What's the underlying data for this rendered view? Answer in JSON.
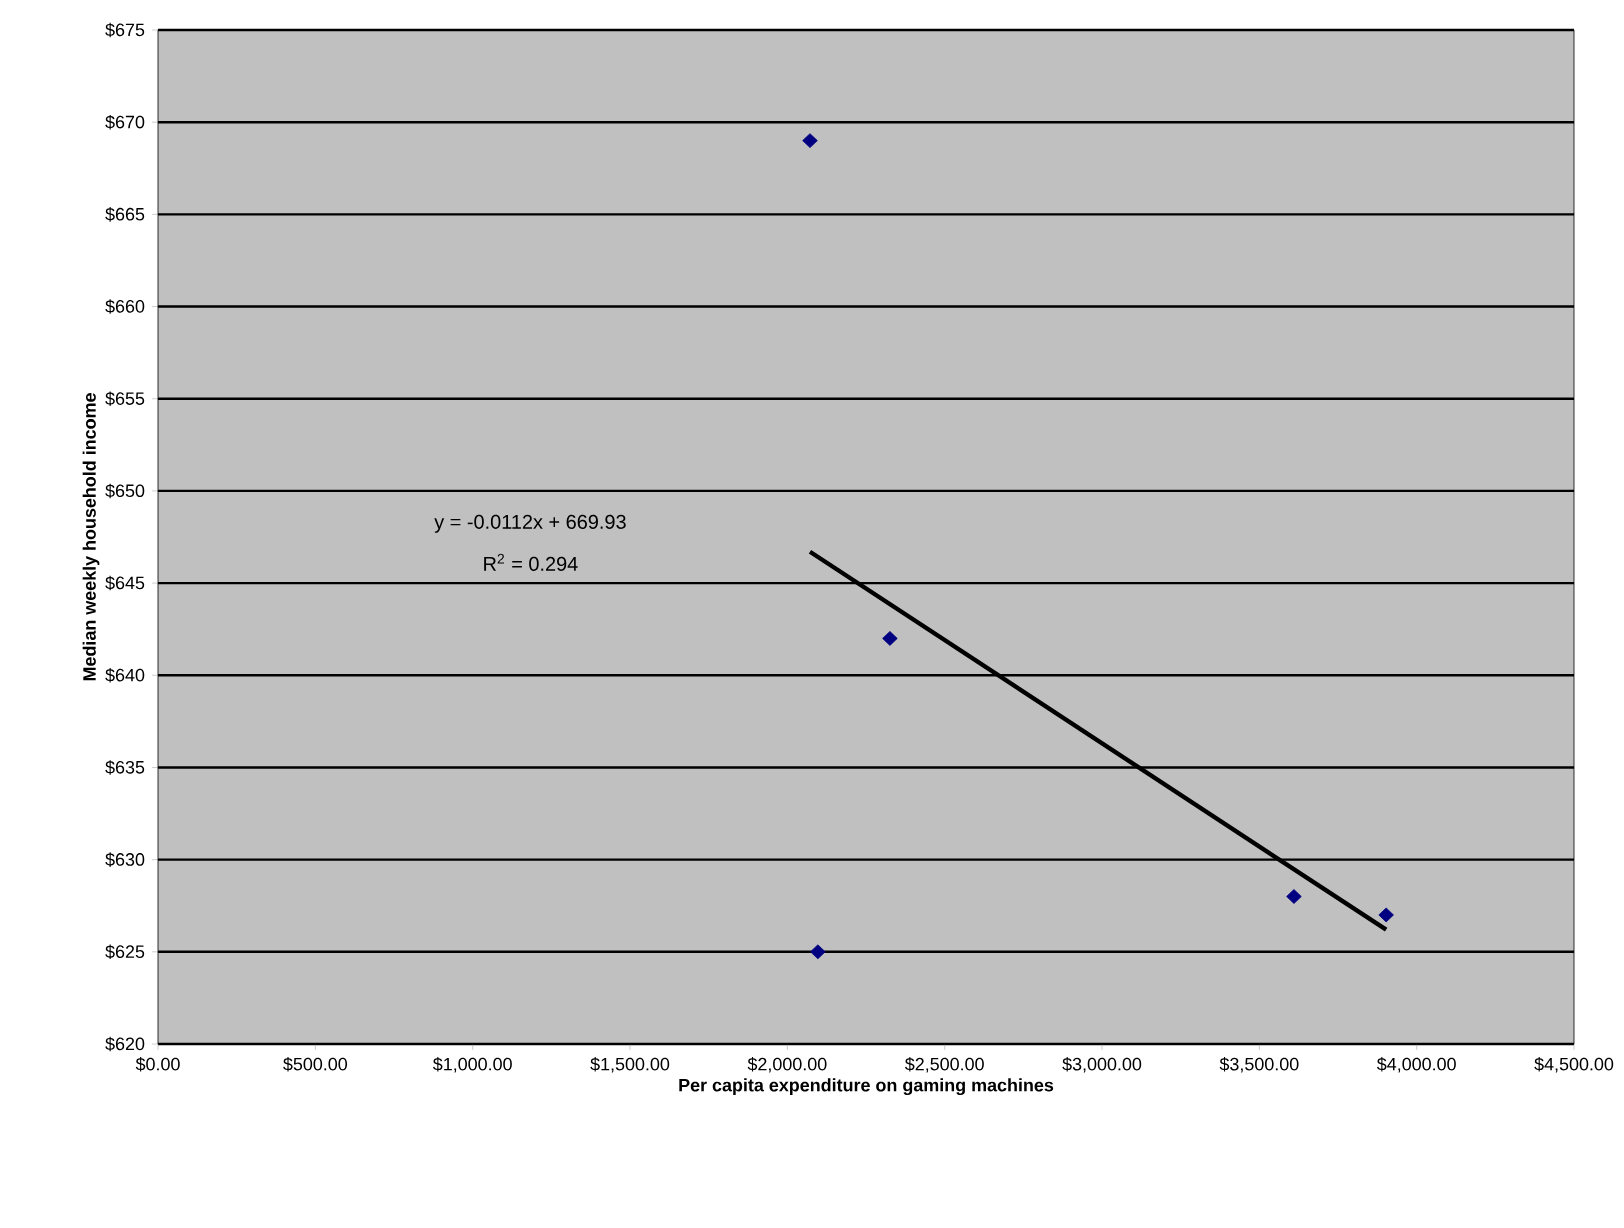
{
  "chart_data": {
    "type": "scatter",
    "xlabel": "Per capita expenditure on gaming machines",
    "ylabel": "Median weekly household income",
    "series": [
      {
        "color": "#000080",
        "x": [
          2072,
          2326,
          2097,
          3610,
          3903
        ],
        "values": [
          669,
          642,
          625,
          628,
          627
        ]
      },
      {
        "type": "line",
        "marker": "none",
        "color": "#000000",
        "x": [
          2072,
          3903
        ],
        "values": [
          646.7,
          626.2
        ]
      }
    ],
    "marker": "diamond",
    "grid": "y",
    "xlim": [
      0,
      4500
    ],
    "ylim": [
      620,
      675
    ],
    "xticks": [
      {
        "value": 0,
        "label": "$0.00"
      },
      {
        "value": 500,
        "label": "$500.00"
      },
      {
        "value": 1000,
        "label": "$1,000.00"
      },
      {
        "value": 1500,
        "label": "$1,500.00"
      },
      {
        "value": 2000,
        "label": "$2,000.00"
      },
      {
        "value": 2500,
        "label": "$2,500.00"
      },
      {
        "value": 3000,
        "label": "$3,000.00"
      },
      {
        "value": 3500,
        "label": "$3,500.00"
      },
      {
        "value": 4000,
        "label": "$4,000.00"
      },
      {
        "value": 4500,
        "label": "$4,500.00"
      }
    ],
    "yticks": [
      {
        "value": 620,
        "label": "$620"
      },
      {
        "value": 625,
        "label": "$625"
      },
      {
        "value": 630,
        "label": "$630"
      },
      {
        "value": 635,
        "label": "$635"
      },
      {
        "value": 640,
        "label": "$640"
      },
      {
        "value": 645,
        "label": "$645"
      },
      {
        "value": 650,
        "label": "$650"
      },
      {
        "value": 655,
        "label": "$655"
      },
      {
        "value": 660,
        "label": "$660"
      },
      {
        "value": 665,
        "label": "$665"
      },
      {
        "value": 670,
        "label": "$670"
      },
      {
        "value": 675,
        "label": "$675"
      }
    ],
    "annotations": [
      "y = -0.0112x + 669.93",
      "R$^{2}$ = 0.294"
    ]
  }
}
